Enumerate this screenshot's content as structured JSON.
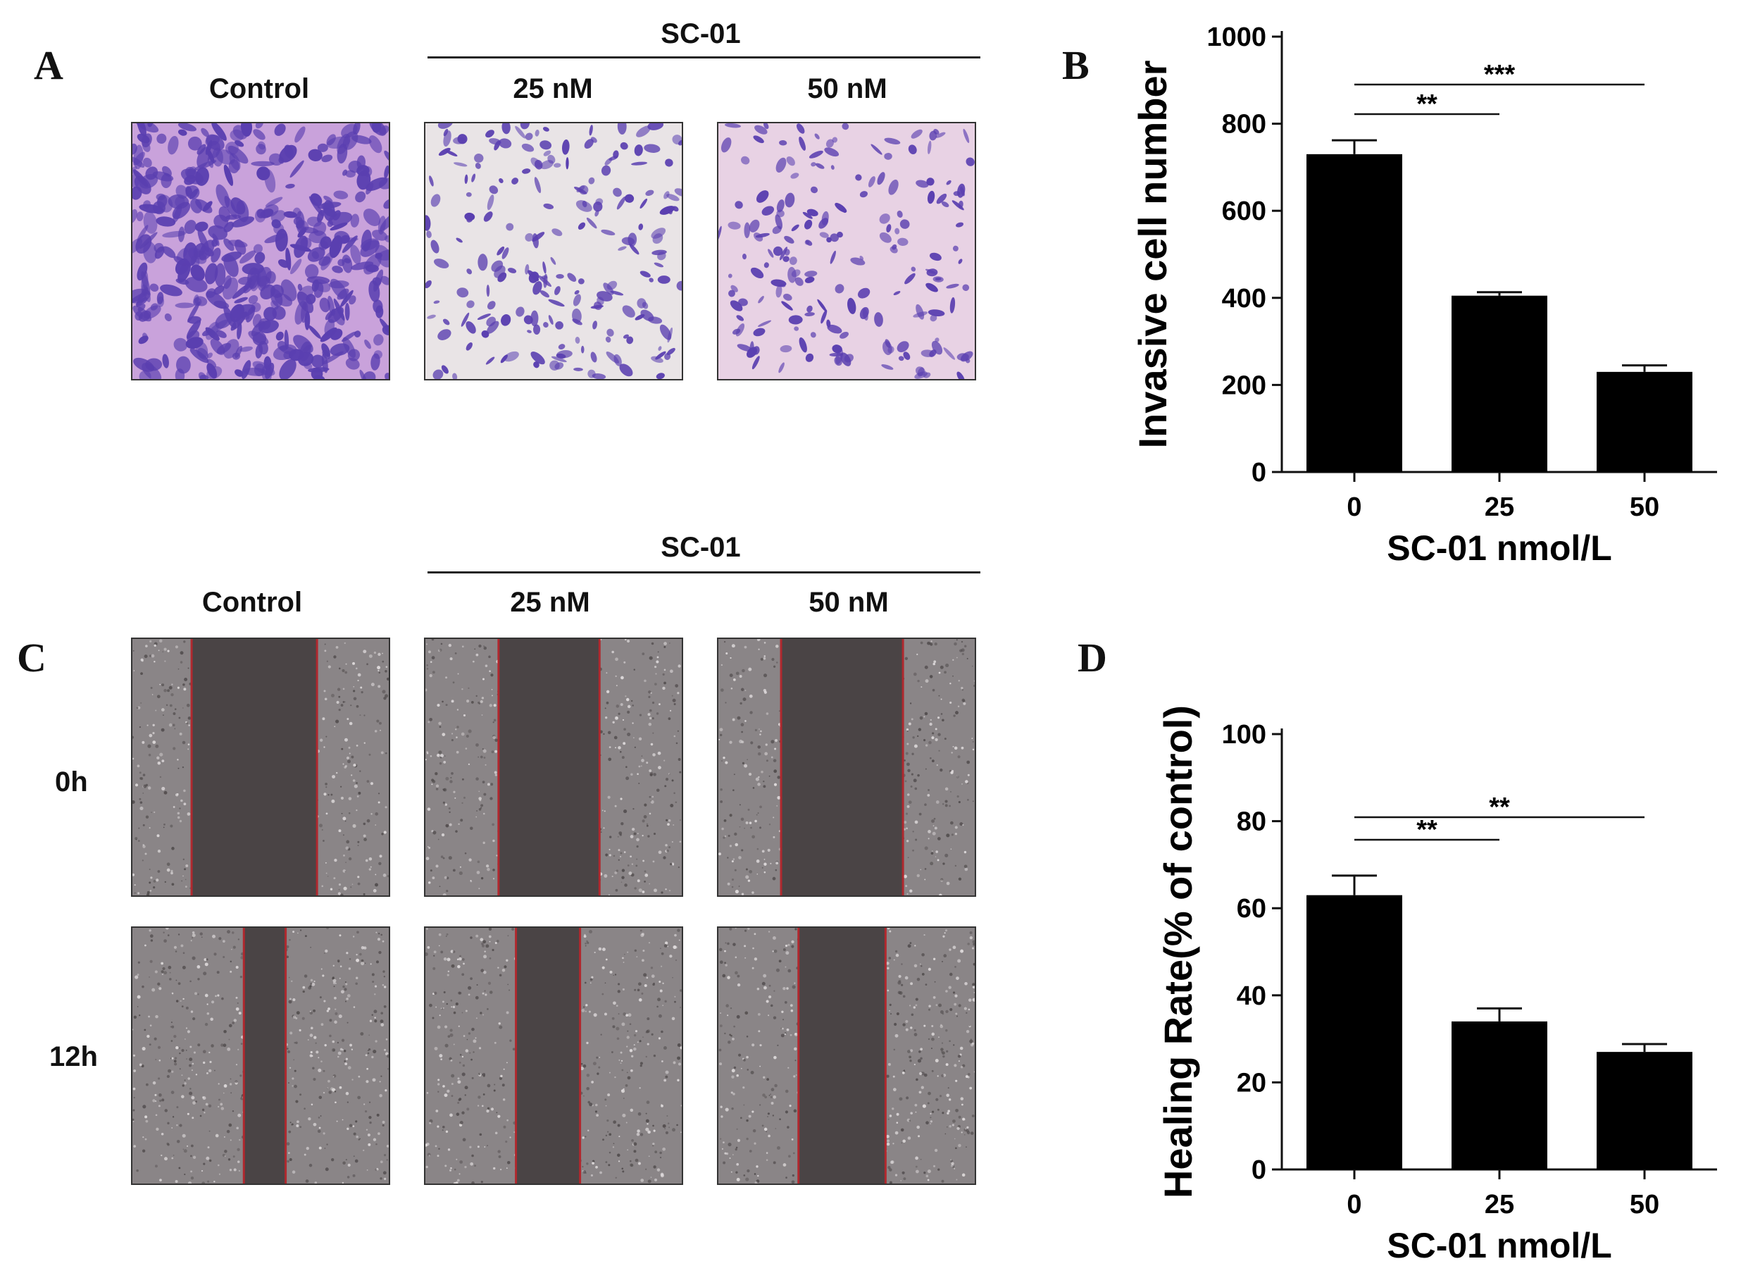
{
  "figure": {
    "panels": {
      "A": {
        "letter": "A",
        "group_label": "SC-01",
        "columns": [
          "Control",
          "25 nM",
          "50 nM"
        ]
      },
      "C": {
        "letter": "C",
        "group_label": "SC-01",
        "columns": [
          "Control",
          "25 nM",
          "50 nM"
        ],
        "rows": [
          "0h",
          "12h"
        ]
      },
      "B": {
        "letter": "B"
      },
      "D": {
        "letter": "D"
      }
    },
    "colors": {
      "bar": "#000000",
      "stain_bg_control": "#c9a2db",
      "stain_bg_25": "#e9e4e6",
      "stain_bg_50": "#e8d2e4",
      "stain_cell": "#5a3fb0",
      "wound_cells": "#8a8587",
      "wound_gap": "#4a4445",
      "wound_line": "#b0282e"
    }
  },
  "chart_data": [
    {
      "id": "B",
      "type": "bar",
      "categories": [
        "0",
        "25",
        "50"
      ],
      "values": [
        730,
        405,
        230
      ],
      "errors": [
        32,
        8,
        15
      ],
      "ylabel": "Invasive cell number",
      "xlabel": "SC-01 nmol/L",
      "ylim": [
        0,
        1000
      ],
      "yticks": [
        "0",
        "200",
        "400",
        "600",
        "800",
        "1000"
      ],
      "significance": [
        {
          "from": 0,
          "to": 1,
          "label": "**"
        },
        {
          "from": 0,
          "to": 2,
          "label": "***"
        }
      ]
    },
    {
      "id": "D",
      "type": "bar",
      "categories": [
        "0",
        "25",
        "50"
      ],
      "values": [
        63,
        34,
        27
      ],
      "errors": [
        4.5,
        3,
        1.8
      ],
      "ylabel": "Healing Rate(% of control)",
      "xlabel": "SC-01 nmol/L",
      "ylim": [
        0,
        100
      ],
      "yticks": [
        "0",
        "20",
        "40",
        "60",
        "80",
        "100"
      ],
      "significance": [
        {
          "from": 0,
          "to": 1,
          "label": "**"
        },
        {
          "from": 0,
          "to": 2,
          "label": "**"
        }
      ]
    }
  ]
}
